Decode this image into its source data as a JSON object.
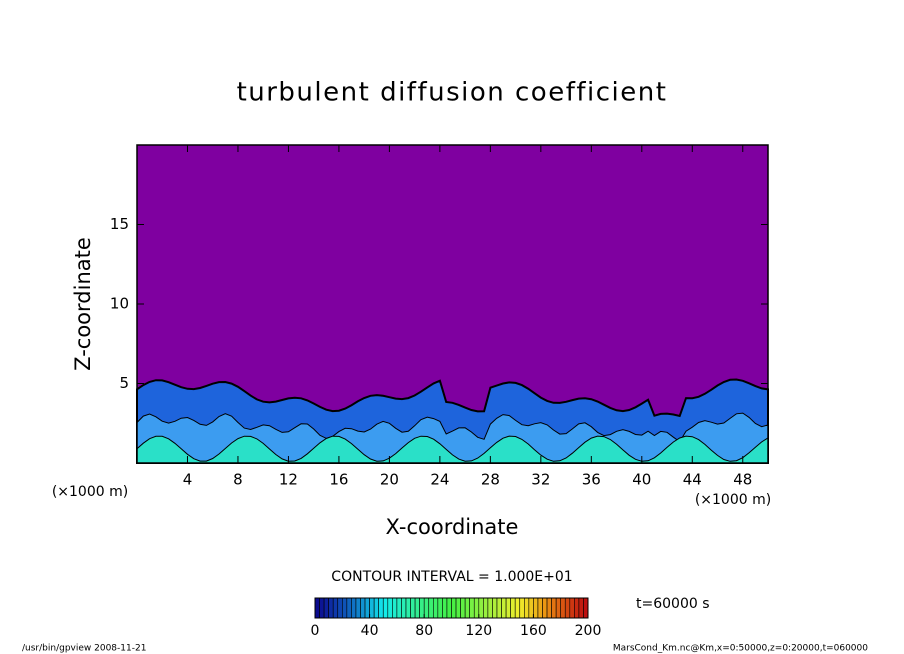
{
  "chart_data": {
    "type": "contour",
    "title": "turbulent diffusion coefficient",
    "xlabel": "X-coordinate",
    "ylabel": "Z-coordinate",
    "xunit": "(×1000 m)",
    "yunit": "(×1000 m)",
    "xlim": [
      0,
      50
    ],
    "xticks": [
      4,
      8,
      12,
      16,
      20,
      24,
      28,
      32,
      36,
      40,
      44,
      48
    ],
    "ylim": [
      0,
      20
    ],
    "yticks": [
      5,
      10,
      15
    ],
    "background_color": "#7f00a0",
    "contour_interval": "CONTOUR INTERVAL = 1.000E+01",
    "time_label": "t=60000 s",
    "colorbar": {
      "lim": [
        0,
        200
      ],
      "ticks": [
        0,
        40,
        80,
        120,
        160,
        200
      ]
    },
    "footer_left": "/usr/bin/gpview   2008-11-21",
    "footer_right": "MarsCond_Km.nc@Km,x=0:50000,z=0:20000,t=060000"
  }
}
